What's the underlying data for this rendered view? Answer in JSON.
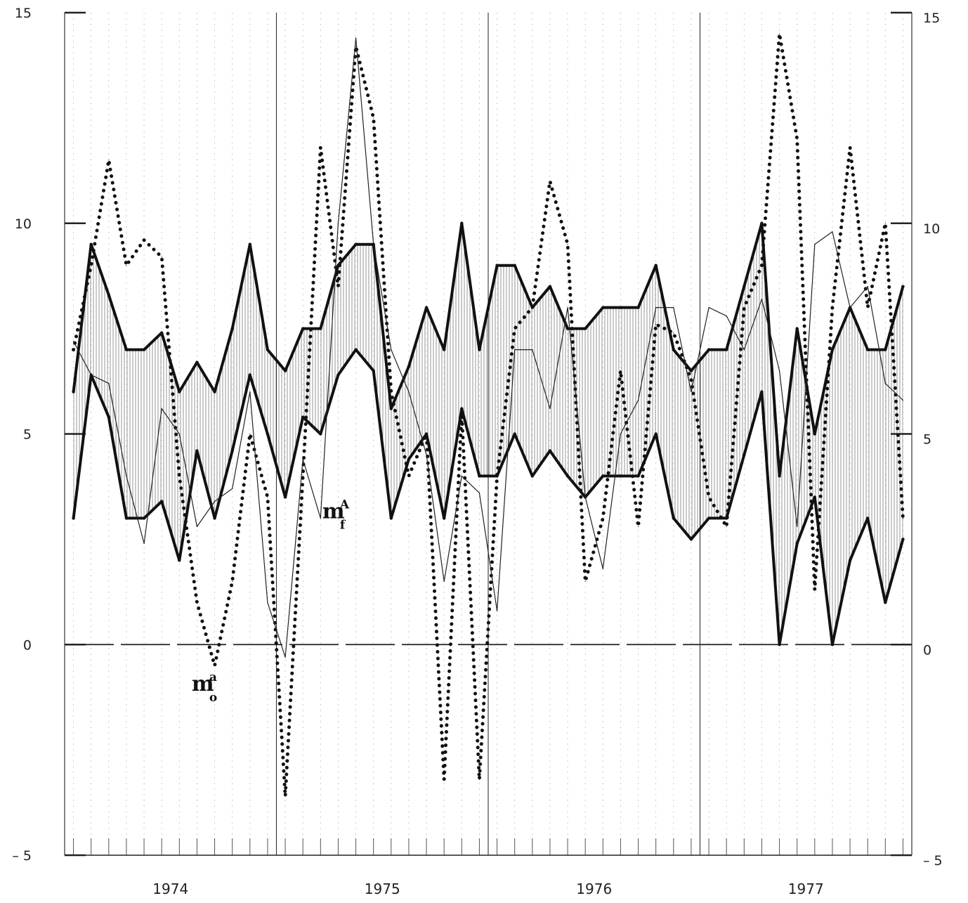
{
  "chart_data": {
    "type": "line",
    "title": "",
    "xlabel": "",
    "ylabel": "",
    "ylim": [
      -5,
      15
    ],
    "y_ticks": [
      -5,
      0,
      5,
      10,
      15
    ],
    "y_tick_labels_left": [
      "– 5",
      "0",
      "5",
      "10",
      "15"
    ],
    "y_tick_labels_right": [
      "– 5",
      "0",
      "5",
      "10",
      "15"
    ],
    "x_unit": "month index (1 = Jan 1974)",
    "xlim": [
      0.5,
      48.5
    ],
    "year_labels": [
      {
        "label": "1974",
        "center": 6.5
      },
      {
        "label": "1975",
        "center": 18.5
      },
      {
        "label": "1976",
        "center": 30.5
      },
      {
        "label": "1977",
        "center": 42.5
      }
    ],
    "year_boundaries": [
      12.5,
      24.5,
      36.5
    ],
    "grid": "dotted vertical lines at each month",
    "shading": "vertical hatching between the upper and lower bold bands",
    "annotations": [
      {
        "base": "m",
        "sup": "a",
        "sub": "o",
        "x": 7.7,
        "y": -1.1
      },
      {
        "base": "m",
        "sup": "A",
        "sub": "f",
        "x": 15.1,
        "y": 3.0
      }
    ],
    "series": [
      {
        "style": "thick",
        "role": "band-upper",
        "x": [
          1,
          2,
          3,
          4,
          5,
          6,
          7,
          8,
          9,
          10,
          11,
          12,
          13,
          14,
          15,
          16,
          17,
          18,
          19,
          20,
          21,
          22,
          23,
          24,
          25,
          26,
          27,
          28,
          29,
          30,
          31,
          32,
          33,
          34,
          35,
          36,
          37,
          38,
          39,
          40,
          41,
          42,
          43,
          44,
          45,
          46,
          47,
          48
        ],
        "values": [
          6.0,
          9.5,
          8.3,
          7.0,
          7.0,
          7.4,
          6.0,
          6.7,
          6.0,
          7.5,
          9.5,
          7.0,
          6.5,
          7.5,
          7.5,
          9.0,
          9.5,
          9.5,
          5.6,
          6.6,
          8.0,
          7.0,
          10.0,
          7.0,
          9.0,
          9.0,
          8.0,
          8.5,
          7.5,
          7.5,
          8.0,
          8.0,
          8.0,
          9.0,
          7.0,
          6.5,
          7.0,
          7.0,
          8.5,
          10.0,
          4.0,
          7.5,
          5.0,
          7.0,
          8.0,
          7.0,
          7.0,
          8.5
        ]
      },
      {
        "style": "thick",
        "role": "band-lower",
        "x": [
          1,
          2,
          3,
          4,
          5,
          6,
          7,
          8,
          9,
          10,
          11,
          12,
          13,
          14,
          15,
          16,
          17,
          18,
          19,
          20,
          21,
          22,
          23,
          24,
          25,
          26,
          27,
          28,
          29,
          30,
          31,
          32,
          33,
          34,
          35,
          36,
          37,
          38,
          39,
          40,
          41,
          42,
          43,
          44,
          45,
          46,
          47,
          48
        ],
        "values": [
          3.0,
          6.4,
          5.4,
          3.0,
          3.0,
          3.4,
          2.0,
          4.6,
          3.0,
          4.6,
          6.4,
          5.0,
          3.5,
          5.4,
          5.0,
          6.4,
          7.0,
          6.5,
          3.0,
          4.4,
          5.0,
          3.0,
          5.6,
          4.0,
          4.0,
          5.0,
          4.0,
          4.6,
          4.0,
          3.5,
          4.0,
          4.0,
          4.0,
          5.0,
          3.0,
          2.5,
          3.0,
          3.0,
          4.5,
          6.0,
          0.0,
          2.4,
          3.5,
          0.0,
          2.0,
          3.0,
          1.0,
          2.5
        ]
      },
      {
        "style": "dotted",
        "role": "m_o^a",
        "x": [
          1,
          2,
          3,
          4,
          5,
          6,
          7,
          8,
          9,
          10,
          11,
          12,
          13,
          14,
          15,
          16,
          17,
          18,
          19,
          20,
          21,
          22,
          23,
          24,
          25,
          26,
          27,
          28,
          29,
          30,
          31,
          32,
          33,
          34,
          35,
          36,
          37,
          38,
          39,
          40,
          41,
          42,
          43,
          44,
          45,
          46,
          47,
          48
        ],
        "values": [
          7.0,
          9.0,
          11.5,
          9.0,
          9.6,
          9.2,
          4.0,
          1.0,
          -0.5,
          1.5,
          5.0,
          3.5,
          -3.6,
          4.0,
          11.8,
          8.5,
          14.2,
          12.5,
          6.0,
          4.0,
          5.0,
          -3.2,
          5.5,
          -3.2,
          4.0,
          7.5,
          8.0,
          11.0,
          9.5,
          1.5,
          3.0,
          6.5,
          2.8,
          7.6,
          7.4,
          6.3,
          3.5,
          2.8,
          8.0,
          9.0,
          14.5,
          12.0,
          1.3,
          8.0,
          11.8,
          8.0,
          10.0,
          3.0
        ]
      },
      {
        "style": "thin",
        "role": "m_f^A",
        "x": [
          1,
          2,
          3,
          4,
          5,
          6,
          7,
          8,
          9,
          10,
          11,
          12,
          13,
          14,
          15,
          16,
          17,
          18,
          19,
          20,
          21,
          22,
          23,
          24,
          25,
          26,
          27,
          28,
          29,
          30,
          31,
          32,
          33,
          34,
          35,
          36,
          37,
          38,
          39,
          40,
          41,
          42,
          43,
          44,
          45,
          46,
          47,
          48
        ],
        "values": [
          7.2,
          6.4,
          6.2,
          4.0,
          2.4,
          5.6,
          5.0,
          2.8,
          3.4,
          3.7,
          6.0,
          1.0,
          -0.3,
          4.4,
          3.0,
          10.0,
          14.4,
          9.5,
          7.0,
          6.0,
          4.5,
          1.5,
          4.0,
          3.6,
          0.8,
          7.0,
          7.0,
          5.6,
          8.0,
          3.5,
          1.8,
          5.0,
          5.8,
          8.0,
          8.0,
          6.0,
          8.0,
          7.8,
          7.0,
          8.2,
          6.5,
          2.8,
          9.5,
          9.8,
          8.0,
          8.5,
          6.2,
          5.8
        ]
      }
    ]
  }
}
